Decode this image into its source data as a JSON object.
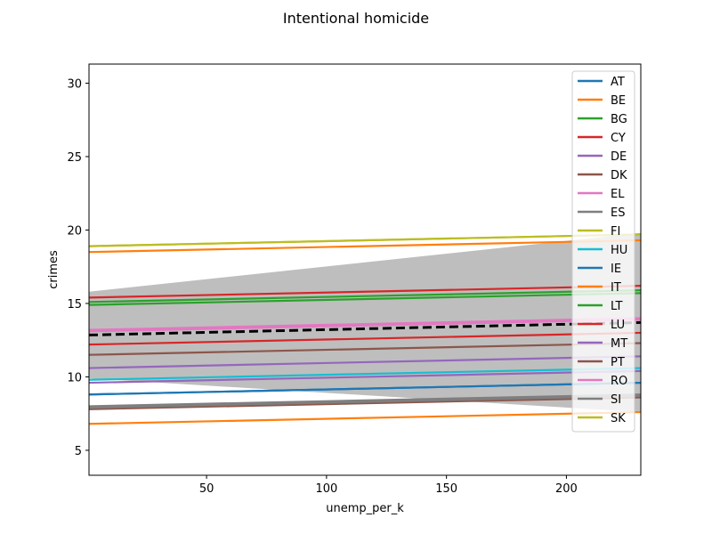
{
  "chart_data": {
    "type": "line",
    "title": "Intentional homicide",
    "xlabel": "unemp_per_k",
    "ylabel": "crimes",
    "xlim": [
      1,
      231
    ],
    "ylim": [
      3.3,
      31.3
    ],
    "xticks": [
      50,
      100,
      150,
      200
    ],
    "yticks": [
      5,
      10,
      15,
      20,
      25,
      30
    ],
    "grid": false,
    "legend_position": "top-right",
    "series": [
      {
        "name": "AT",
        "color": "#1f77b4",
        "x": [
          1,
          231
        ],
        "y": [
          8.8,
          9.6
        ]
      },
      {
        "name": "BE",
        "color": "#ff7f0e",
        "x": [
          1,
          231
        ],
        "y": [
          18.5,
          19.3
        ]
      },
      {
        "name": "BG",
        "color": "#2ca02c",
        "x": [
          1,
          231
        ],
        "y": [
          15.1,
          15.9
        ]
      },
      {
        "name": "CY",
        "color": "#d62728",
        "x": [
          1,
          231
        ],
        "y": [
          15.4,
          16.2
        ]
      },
      {
        "name": "DE",
        "color": "#9467bd",
        "x": [
          1,
          231
        ],
        "y": [
          9.6,
          10.4
        ]
      },
      {
        "name": "DK",
        "color": "#8c564b",
        "x": [
          1,
          231
        ],
        "y": [
          7.8,
          8.6
        ]
      },
      {
        "name": "EL",
        "color": "#e377c2",
        "x": [
          1,
          231
        ],
        "y": [
          13.1,
          13.9
        ]
      },
      {
        "name": "ES",
        "color": "#7f7f7f",
        "x": [
          1,
          231
        ],
        "y": [
          8.0,
          8.8
        ]
      },
      {
        "name": "FI",
        "color": "#bcbd22",
        "x": [
          1,
          231
        ],
        "y": [
          18.9,
          19.7
        ]
      },
      {
        "name": "HU",
        "color": "#17becf",
        "x": [
          1,
          231
        ],
        "y": [
          9.8,
          10.6
        ]
      },
      {
        "name": "IE",
        "color": "#1f77b4",
        "x": [
          1,
          231
        ],
        "y": [
          8.8,
          9.6
        ]
      },
      {
        "name": "IT",
        "color": "#ff7f0e",
        "x": [
          1,
          231
        ],
        "y": [
          6.8,
          7.6
        ]
      },
      {
        "name": "LT",
        "color": "#2ca02c",
        "x": [
          1,
          231
        ],
        "y": [
          14.9,
          15.7
        ]
      },
      {
        "name": "LU",
        "color": "#d62728",
        "x": [
          1,
          231
        ],
        "y": [
          12.2,
          13.0
        ]
      },
      {
        "name": "MT",
        "color": "#9467bd",
        "x": [
          1,
          231
        ],
        "y": [
          10.6,
          11.4
        ]
      },
      {
        "name": "PT",
        "color": "#8c564b",
        "x": [
          1,
          231
        ],
        "y": [
          11.5,
          12.3
        ]
      },
      {
        "name": "RO",
        "color": "#e377c2",
        "x": [
          1,
          231
        ],
        "y": [
          13.2,
          14.0
        ]
      },
      {
        "name": "SI",
        "color": "#7f7f7f",
        "x": [
          1,
          231
        ],
        "y": [
          7.9,
          8.7
        ]
      },
      {
        "name": "SK",
        "color": "#bcbd22",
        "x": [
          1,
          231
        ],
        "y": [
          18.9,
          19.7
        ]
      }
    ],
    "mean_line": {
      "color": "#000000",
      "x": [
        1,
        231
      ],
      "y": [
        12.85,
        13.7
      ]
    },
    "confidence_band": {
      "color": "#bebebe",
      "x": [
        1,
        231
      ],
      "upper": [
        15.8,
        19.8
      ],
      "lower": [
        9.9,
        7.6
      ]
    }
  }
}
